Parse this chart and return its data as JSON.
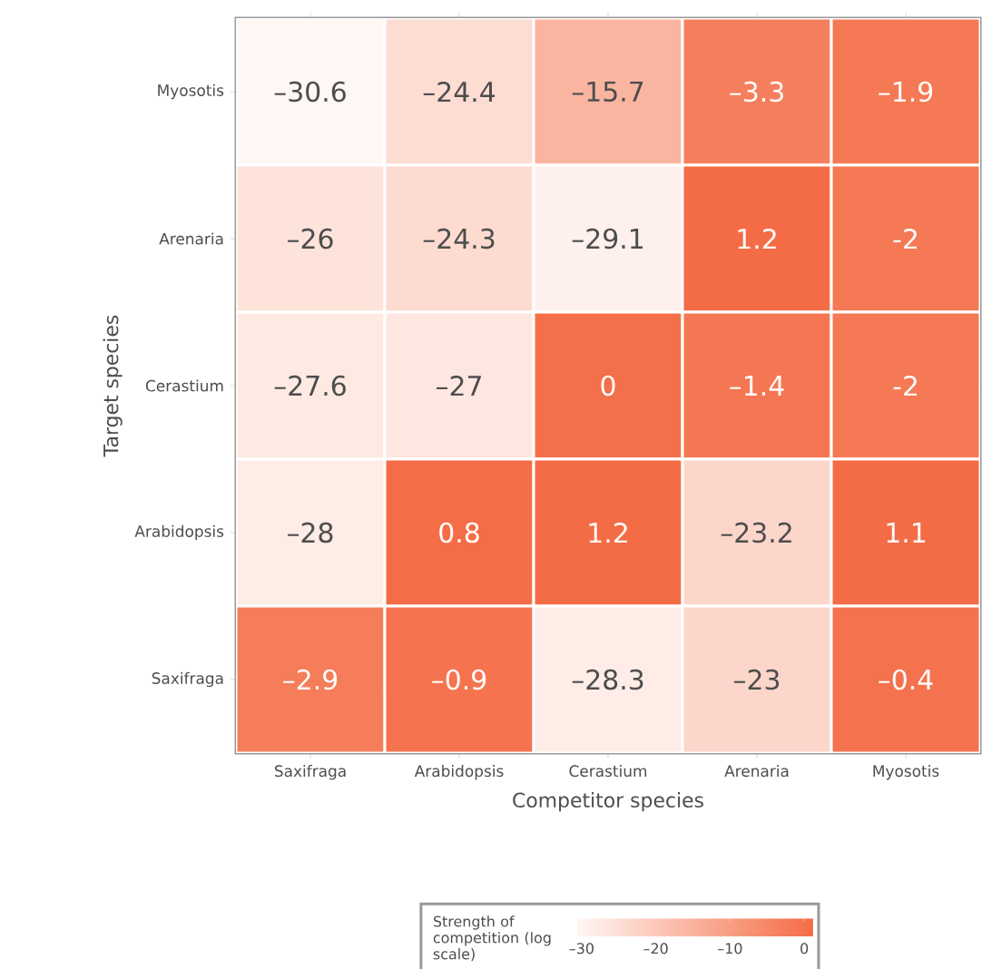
{
  "chart_data": {
    "type": "heatmap",
    "xlabel": "Competitor species",
    "ylabel": "Target species",
    "clabel": "Strength of competition (log scale)",
    "categories": [
      "Saxifraga",
      "Arabidopsis",
      "Cerastium",
      "Arenaria",
      "Myosotis"
    ],
    "y_categories": [
      "Myosotis",
      "Arenaria",
      "Cerastium",
      "Arabidopsis",
      "Saxifraga"
    ],
    "cells": [
      [
        -30.6,
        -24.4,
        -15.7,
        -3.3,
        -1.9
      ],
      [
        -26,
        -24.3,
        -29.1,
        1.2,
        -2
      ],
      [
        -27.6,
        -27,
        0,
        -1.4,
        -2
      ],
      [
        -28,
        0.8,
        1.2,
        -23.2,
        1.1
      ],
      [
        -2.9,
        -0.9,
        -28.3,
        -23,
        -0.4
      ]
    ],
    "cell_labels": [
      [
        "–30.6",
        "–24.4",
        "–15.7",
        "–3.3",
        "–1.9"
      ],
      [
        "–26",
        "–24.3",
        "–29.1",
        "1.2",
        "-2"
      ],
      [
        "–27.6",
        "–27",
        "0",
        "–1.4",
        "-2"
      ],
      [
        "–28",
        "0.8",
        "1.2",
        "–23.2",
        "1.1"
      ],
      [
        "–2.9",
        "–0.9",
        "–28.3",
        "–23",
        "–0.4"
      ]
    ],
    "data_labels": true,
    "clim": [
      -30.6,
      1.2
    ],
    "cticks": [
      {
        "value": -30,
        "label": "–30"
      },
      {
        "value": -20,
        "label": "–20"
      },
      {
        "value": -10,
        "label": "–10"
      },
      0
    ]
  }
}
